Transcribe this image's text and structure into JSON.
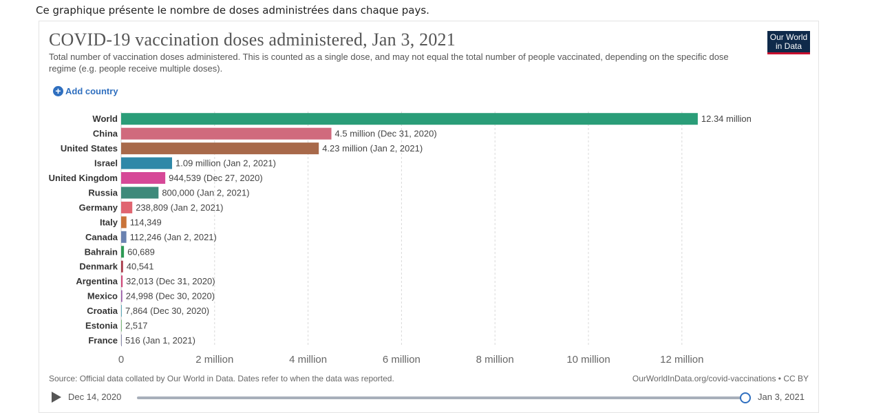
{
  "intro_text": "Ce graphique présente le nombre de doses administrées dans chaque pays.",
  "logo": {
    "line1": "Our World",
    "line2": "in Data",
    "bg_color": "#0f2a4a",
    "accent_color": "#c8102e"
  },
  "add_country": {
    "icon": "plus-circle-icon",
    "label": "Add country"
  },
  "footer": {
    "source": "Source: Official data collated by Our World in Data. Dates refer to when the data was reported.",
    "license": "OurWorldInData.org/covid-vaccinations • CC BY"
  },
  "timeline": {
    "start": "Dec 14, 2020",
    "end": "Jan 3, 2021",
    "progress": 1.0
  },
  "chart_data": {
    "type": "bar",
    "orientation": "horizontal",
    "title": "COVID-19 vaccination doses administered, Jan 3, 2021",
    "subtitle": "Total number of vaccination doses administered. This is counted as a single dose, and may not equal the total number of people vaccinated, depending on the specific dose regime (e.g. people receive multiple doses).",
    "xlim": [
      0,
      13000000
    ],
    "grid": true,
    "ticks": [
      {
        "value": 0,
        "label": "0"
      },
      {
        "value": 2000000,
        "label": "2 million"
      },
      {
        "value": 4000000,
        "label": "4 million"
      },
      {
        "value": 6000000,
        "label": "6 million"
      },
      {
        "value": 8000000,
        "label": "8 million"
      },
      {
        "value": 10000000,
        "label": "10 million"
      },
      {
        "value": 12000000,
        "label": "12 million"
      }
    ],
    "bars": [
      {
        "category": "World",
        "value": 12340000,
        "label": "12.34 million",
        "color": "#2a9d78"
      },
      {
        "category": "China",
        "value": 4500000,
        "label": "4.5 million (Dec 31, 2020)",
        "color": "#d06a7d"
      },
      {
        "category": "United States",
        "value": 4230000,
        "label": "4.23 million (Jan 2, 2021)",
        "color": "#a8694a"
      },
      {
        "category": "Israel",
        "value": 1090000,
        "label": "1.09 million (Jan 2, 2021)",
        "color": "#2f88a8"
      },
      {
        "category": "United Kingdom",
        "value": 944539,
        "label": "944,539 (Dec 27, 2020)",
        "color": "#d64897"
      },
      {
        "category": "Russia",
        "value": 800000,
        "label": "800,000 (Jan 2, 2021)",
        "color": "#3e8a7a"
      },
      {
        "category": "Germany",
        "value": 238809,
        "label": "238,809 (Jan 2, 2021)",
        "color": "#e06570"
      },
      {
        "category": "Italy",
        "value": 114349,
        "label": "114,349",
        "color": "#c9733a"
      },
      {
        "category": "Canada",
        "value": 112246,
        "label": "112,246 (Jan 2, 2021)",
        "color": "#6a82b0"
      },
      {
        "category": "Bahrain",
        "value": 60689,
        "label": "60,689",
        "color": "#2e9a55"
      },
      {
        "category": "Denmark",
        "value": 40541,
        "label": "40,541",
        "color": "#a83a4a"
      },
      {
        "category": "Argentina",
        "value": 32013,
        "label": "32,013 (Dec 31, 2020)",
        "color": "#d04a7a"
      },
      {
        "category": "Mexico",
        "value": 24998,
        "label": "24,998 (Dec 30, 2020)",
        "color": "#9a5aa8"
      },
      {
        "category": "Croatia",
        "value": 7864,
        "label": "7,864 (Dec 30, 2020)",
        "color": "#5aa8b8"
      },
      {
        "category": "Estonia",
        "value": 2517,
        "label": "2,517",
        "color": "#7ab87a"
      },
      {
        "category": "France",
        "value": 516,
        "label": "516 (Jan 1, 2021)",
        "color": "#8888aa"
      }
    ]
  }
}
